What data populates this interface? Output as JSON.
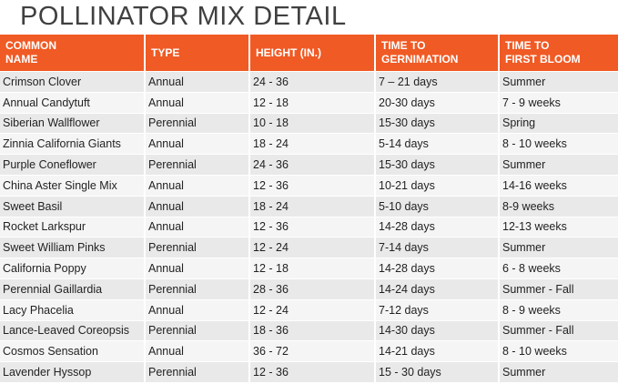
{
  "header": {
    "title": "POLLINATOR MIX DETAIL"
  },
  "table": {
    "columns": [
      [
        "COMMON",
        "NAME"
      ],
      [
        "TYPE"
      ],
      [
        "HEIGHT (IN.)"
      ],
      [
        "TIME TO",
        "GERNIMATION"
      ],
      [
        "TIME TO",
        "FIRST BLOOM"
      ]
    ],
    "rows": [
      [
        "Crimson Clover",
        "Annual",
        "24 - 36",
        "7 – 21 days",
        "Summer"
      ],
      [
        "Annual Candytuft",
        "Annual",
        "12 - 18",
        "20-30 days",
        "7 - 9 weeks"
      ],
      [
        "Siberian Wallflower",
        "Perennial",
        "10 - 18",
        "15-30 days",
        "Spring"
      ],
      [
        "Zinnia California Giants",
        "Annual",
        "18 - 24",
        "5-14 days",
        "8 - 10 weeks"
      ],
      [
        "Purple Coneflower",
        "Perennial",
        "24 - 36",
        "15-30 days",
        "Summer"
      ],
      [
        "China Aster Single Mix",
        "Annual",
        "12 - 36",
        "10-21 days",
        "14-16 weeks"
      ],
      [
        "Sweet Basil",
        "Annual",
        "18 - 24",
        "5-10 days",
        "8-9 weeks"
      ],
      [
        "Rocket Larkspur",
        "Annual",
        "12 - 36",
        "14-28 days",
        "12-13 weeks"
      ],
      [
        "Sweet William Pinks",
        "Perennial",
        "12 - 24",
        "7-14 days",
        "Summer"
      ],
      [
        "California Poppy",
        "Annual",
        "12 - 18",
        "14-28 days",
        "6 - 8 weeks"
      ],
      [
        "Perennial Gaillardia",
        "Perennial",
        "28 - 36",
        "14-24 days",
        "Summer - Fall"
      ],
      [
        "Lacy Phacelia",
        "Annual",
        "12 - 24",
        "7-12 days",
        "8 - 9 weeks"
      ],
      [
        "Lance-Leaved Coreopsis",
        "Perennial",
        "18 - 36",
        "14-30 days",
        "Summer - Fall"
      ],
      [
        "Cosmos Sensation",
        "Annual",
        "36 - 72",
        "14-21 days",
        "8 - 10 weeks"
      ],
      [
        "Lavender Hyssop",
        "Perennial",
        "12 - 36",
        "15 - 30 days",
        "Summer"
      ]
    ]
  }
}
